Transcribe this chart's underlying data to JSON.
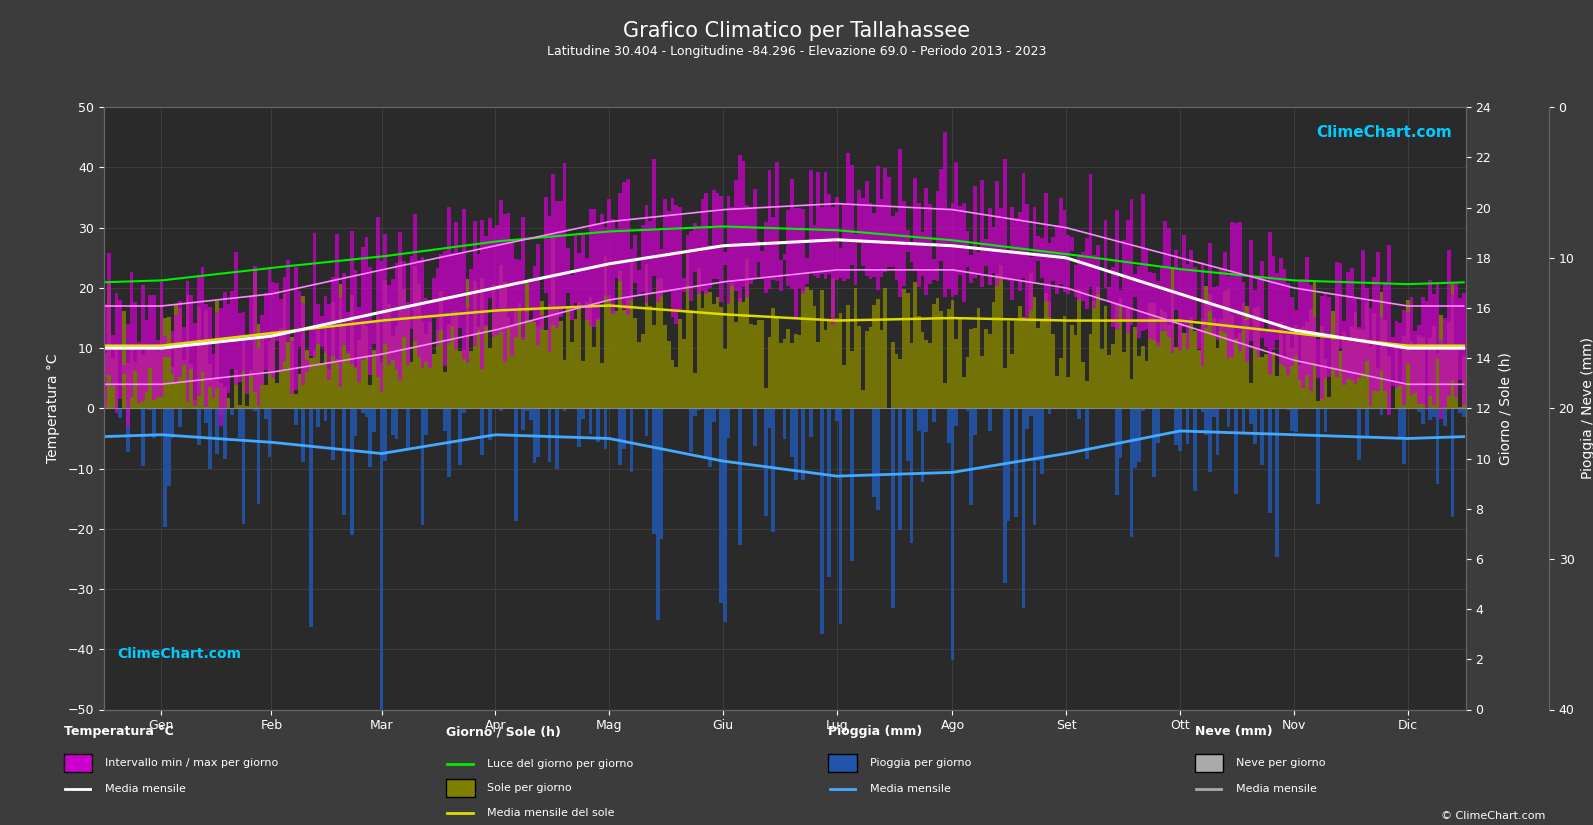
{
  "title": "Grafico Climatico per Tallahassee",
  "subtitle": "Latitudine 30.404 - Longitudine -84.296 - Elevazione 69.0 - Periodo 2013 - 2023",
  "bg_color": "#3c3c3c",
  "plot_bg_color": "#2a2a2a",
  "text_color": "#ffffff",
  "grid_color": "#555555",
  "months": [
    "Gen",
    "Feb",
    "Mar",
    "Apr",
    "Mag",
    "Giu",
    "Lug",
    "Ago",
    "Set",
    "Ott",
    "Nov",
    "Dic"
  ],
  "days_per_month": [
    31,
    28,
    31,
    30,
    31,
    30,
    31,
    31,
    30,
    31,
    30,
    31
  ],
  "temp_min_monthly": [
    4,
    6,
    9,
    13,
    18,
    21,
    23,
    23,
    20,
    14,
    8,
    4
  ],
  "temp_max_monthly": [
    17,
    19,
    23,
    27,
    31,
    33,
    34,
    33,
    30,
    25,
    20,
    17
  ],
  "temp_mean_monthly": [
    10,
    12,
    16,
    20,
    24,
    27,
    28,
    27,
    25,
    19,
    13,
    10
  ],
  "daylight_monthly": [
    10.2,
    11.2,
    12.1,
    13.3,
    14.1,
    14.5,
    14.2,
    13.4,
    12.3,
    11.1,
    10.2,
    9.9
  ],
  "sunshine_monthly": [
    5.0,
    6.0,
    7.0,
    7.8,
    8.2,
    7.5,
    7.0,
    7.2,
    7.0,
    7.0,
    6.0,
    5.0
  ],
  "rain_mean_monthly": [
    3.5,
    4.5,
    6.0,
    3.5,
    4.0,
    7.0,
    9.0,
    8.5,
    6.0,
    3.0,
    3.5,
    4.0
  ],
  "temp_ylim": [
    -50,
    50
  ],
  "sun_ylim": [
    0,
    24
  ],
  "rain_ylim": [
    40,
    0
  ],
  "ylabel_left": "Temperatura °C",
  "ylabel_right_top": "Giorno / Sole (h)",
  "ylabel_right_bot": "Pioggia / Neve (mm)",
  "color_temp_fill": "#cc00cc",
  "color_sunshine_bar": "#808000",
  "color_rain_bar": "#2255aa",
  "color_daylight_line": "#00ee00",
  "color_sunshine_line": "#dddd00",
  "color_temp_mean": "#ffffff",
  "color_temp_minmax": "#ff88ff",
  "color_rain_mean": "#44aaff",
  "logo_color": "#00ccff"
}
